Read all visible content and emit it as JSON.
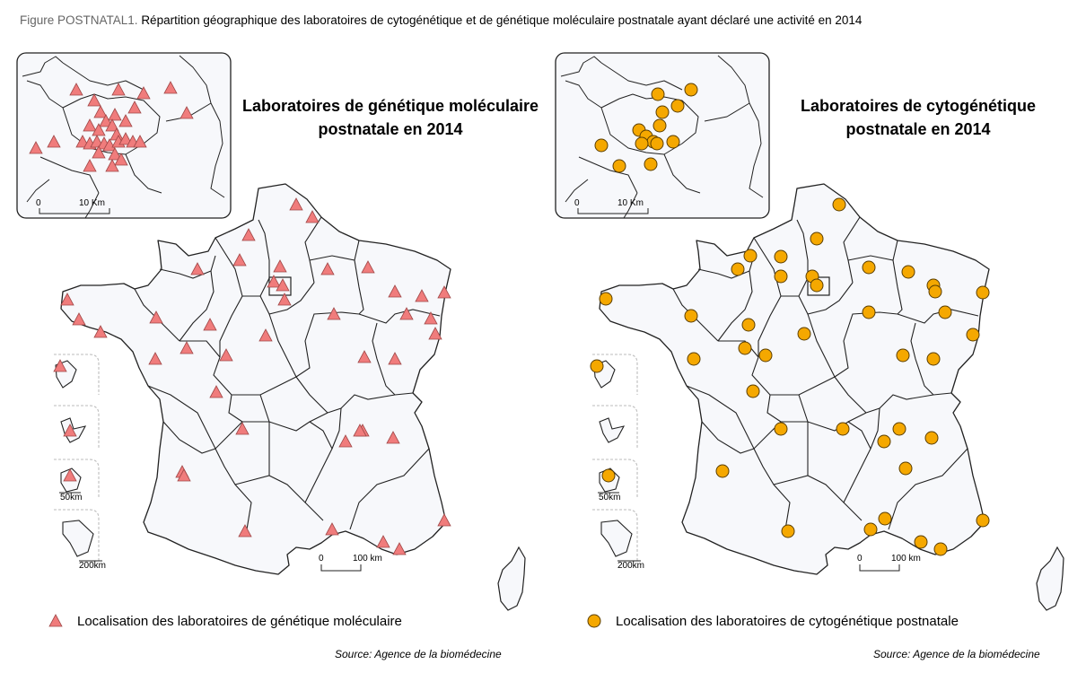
{
  "figure": {
    "label": "Figure POSTNATAL1.",
    "caption": "Répartition géographique des laboratoires de cytogénétique et de génétique moléculaire postnatale ayant déclaré une activité en 2014"
  },
  "maps": [
    {
      "id": "molecular",
      "title_line1": "Laboratoires de génétique moléculaire",
      "title_line2": "postnatale en 2014",
      "legend": "Localisation des laboratoires de génétique moléculaire",
      "source": "Source: Agence de la biomédecine",
      "marker": "triangle",
      "marker_color": "#f07c7c",
      "inset_scale": {
        "zero": "0",
        "label": "10 Km"
      },
      "main_scale": {
        "zero": "0",
        "label": "100 km"
      },
      "dom_scales": [
        "50km",
        "200km"
      ]
    },
    {
      "id": "cytogenetic",
      "title_line1": "Laboratoires de cytogénétique",
      "title_line2": "postnatale en 2014",
      "legend": "Localisation des laboratoires de cytogénétique postnatale",
      "source": "Source: Agence de la biomédecine",
      "marker": "circle",
      "marker_color": "#f5a800",
      "inset_scale": {
        "zero": "0",
        "label": "10 Km"
      },
      "main_scale": {
        "zero": "0",
        "label": "100 km"
      },
      "dom_scales": [
        "50km",
        "200km"
      ]
    }
  ],
  "colors": {
    "land": "#f7f8fb",
    "border": "#222222",
    "marker_stroke": "#9a3a3a",
    "circle_stroke": "#6b4a00"
  }
}
